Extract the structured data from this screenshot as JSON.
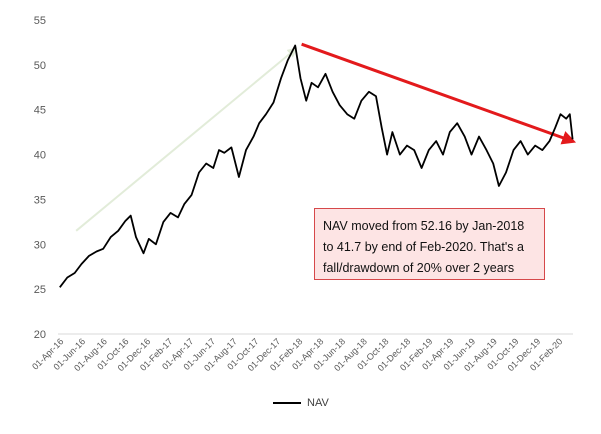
{
  "chart_data": {
    "type": "line",
    "title": "",
    "xlabel": "",
    "ylabel": "",
    "ylim": [
      20,
      55
    ],
    "yticks": [
      20,
      25,
      30,
      35,
      40,
      45,
      50,
      55
    ],
    "xlim": [
      "2016-03-15",
      "2020-02-29"
    ],
    "x_tick_labels": [
      "01-Apr-16",
      "01-Jun-16",
      "01-Aug-16",
      "01-Oct-16",
      "01-Dec-16",
      "01-Feb-17",
      "01-Apr-17",
      "01-Jun-17",
      "01-Aug-17",
      "01-Oct-17",
      "01-Dec-17",
      "01-Feb-18",
      "01-Apr-18",
      "01-Jun-18",
      "01-Aug-18",
      "01-Oct-18",
      "01-Dec-18",
      "01-Feb-19",
      "01-Apr-19",
      "01-Jun-19",
      "01-Aug-19",
      "01-Oct-19",
      "01-Dec-19",
      "01-Feb-20"
    ],
    "x_tick_dates": [
      "2016-04-01",
      "2016-06-01",
      "2016-08-01",
      "2016-10-01",
      "2016-12-01",
      "2017-02-01",
      "2017-04-01",
      "2017-06-01",
      "2017-08-01",
      "2017-10-01",
      "2017-12-01",
      "2018-02-01",
      "2018-04-01",
      "2018-06-01",
      "2018-08-01",
      "2018-10-01",
      "2018-12-01",
      "2019-02-01",
      "2019-04-01",
      "2019-06-01",
      "2019-08-01",
      "2019-10-01",
      "2019-12-01",
      "2020-02-01"
    ],
    "grid": false,
    "legend_position": "bottom",
    "series": [
      {
        "name": "NAV",
        "color": "#000000",
        "x": [
          "2016-03-20",
          "2016-04-10",
          "2016-05-01",
          "2016-05-20",
          "2016-06-10",
          "2016-07-01",
          "2016-07-20",
          "2016-08-10",
          "2016-08-31",
          "2016-09-20",
          "2016-10-05",
          "2016-10-20",
          "2016-11-10",
          "2016-11-25",
          "2016-12-15",
          "2017-01-05",
          "2017-01-25",
          "2017-02-15",
          "2017-03-05",
          "2017-03-25",
          "2017-04-15",
          "2017-05-05",
          "2017-05-25",
          "2017-06-10",
          "2017-06-25",
          "2017-07-15",
          "2017-08-05",
          "2017-08-25",
          "2017-09-15",
          "2017-10-01",
          "2017-10-20",
          "2017-11-10",
          "2017-12-01",
          "2017-12-20",
          "2018-01-10",
          "2018-01-25",
          "2018-02-10",
          "2018-02-25",
          "2018-03-15",
          "2018-04-05",
          "2018-04-25",
          "2018-05-15",
          "2018-06-05",
          "2018-06-25",
          "2018-07-15",
          "2018-08-05",
          "2018-08-25",
          "2018-09-10",
          "2018-09-25",
          "2018-10-10",
          "2018-10-31",
          "2018-11-20",
          "2018-12-10",
          "2018-12-31",
          "2019-01-20",
          "2019-02-10",
          "2019-03-01",
          "2019-03-20",
          "2019-04-10",
          "2019-05-01",
          "2019-05-20",
          "2019-06-10",
          "2019-07-01",
          "2019-07-20",
          "2019-08-05",
          "2019-08-25",
          "2019-09-15",
          "2019-10-05",
          "2019-10-25",
          "2019-11-15",
          "2019-12-05",
          "2019-12-25",
          "2020-01-10",
          "2020-01-25",
          "2020-02-10",
          "2020-02-20",
          "2020-02-28"
        ],
        "values": [
          25.2,
          26.3,
          26.8,
          27.8,
          28.7,
          29.2,
          29.5,
          30.8,
          31.5,
          32.6,
          33.2,
          30.8,
          29.0,
          30.6,
          30.0,
          32.5,
          33.5,
          33.0,
          34.5,
          35.5,
          38.0,
          39.0,
          38.5,
          40.5,
          40.2,
          40.8,
          37.5,
          40.5,
          42.0,
          43.5,
          44.5,
          45.8,
          48.5,
          50.5,
          52.16,
          48.5,
          46.0,
          48.0,
          47.5,
          49.0,
          47.0,
          45.5,
          44.5,
          44.0,
          46.0,
          47.0,
          46.5,
          43.0,
          40.0,
          42.5,
          40.0,
          41.0,
          40.5,
          38.5,
          40.5,
          41.5,
          40.0,
          42.5,
          43.5,
          42.0,
          40.0,
          42.0,
          40.5,
          39.0,
          36.5,
          38.0,
          40.5,
          41.5,
          40.0,
          41.0,
          40.5,
          41.5,
          43.0,
          44.5,
          44.0,
          44.5,
          41.7
        ]
      }
    ],
    "annotations": [
      {
        "text": "NAV moved from 52.16 by Jan-2018 to 41.7 by end of Feb-2020. That's a fall/drawdown of 20% over 2 years"
      }
    ],
    "arrows": [
      {
        "from": {
          "x": "2016-05-05",
          "y": 31.5
        },
        "to": {
          "x": "2018-01-12",
          "y": 51.8
        },
        "color": "#e2ecd9"
      },
      {
        "from": {
          "x": "2018-01-28",
          "y": 52.3
        },
        "to": {
          "x": "2020-02-27",
          "y": 41.5
        },
        "color": "#e31a1c"
      }
    ]
  }
}
